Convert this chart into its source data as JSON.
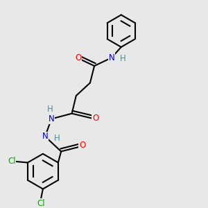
{
  "background_color": "#e8e8e8",
  "bond_color": "#000000",
  "atom_colors": {
    "O": "#ff0000",
    "N": "#0000cd",
    "Cl": "#00aa00",
    "C": "#000000",
    "H": "#4a9090"
  },
  "figsize": [
    3.0,
    3.0
  ],
  "dpi": 100
}
